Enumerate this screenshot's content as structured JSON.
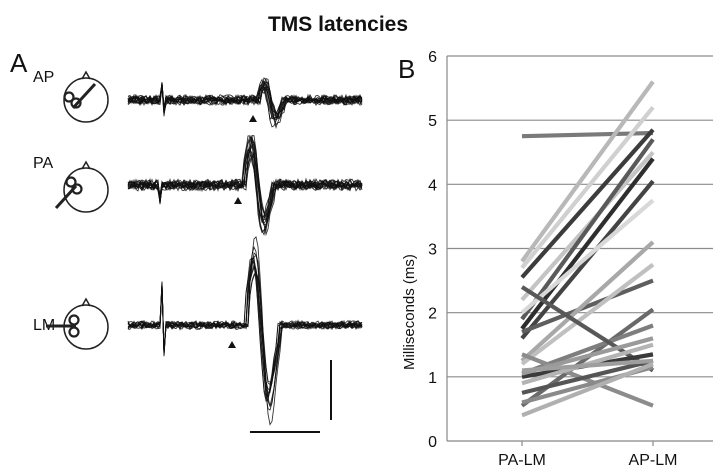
{
  "title": "TMS latencies",
  "panel_a": {
    "label": "A",
    "conditions": [
      {
        "label": "AP"
      },
      {
        "label": "PA"
      },
      {
        "label": "LM"
      }
    ]
  },
  "chart_data": {
    "type": "line",
    "panel_label": "B",
    "title": "",
    "xlabel": "",
    "ylabel": "Milliseconds (ms)",
    "categories": [
      "PA-LM",
      "AP-LM"
    ],
    "ylim": [
      0,
      6
    ],
    "yticks": [
      0,
      1,
      2,
      3,
      4,
      5,
      6
    ],
    "grid": true,
    "series": [
      {
        "values": [
          4.75,
          4.8
        ],
        "color": "#7a7a7a"
      },
      {
        "values": [
          2.8,
          5.6
        ],
        "color": "#b8b8b8"
      },
      {
        "values": [
          2.7,
          5.2
        ],
        "color": "#d0d0d0"
      },
      {
        "values": [
          2.55,
          4.85
        ],
        "color": "#3c3c3c"
      },
      {
        "values": [
          2.2,
          4.5
        ],
        "color": "#c4c4c4"
      },
      {
        "values": [
          1.9,
          4.7
        ],
        "color": "#5a5a5a"
      },
      {
        "values": [
          1.75,
          4.4
        ],
        "color": "#2e2e2e"
      },
      {
        "values": [
          1.6,
          4.05
        ],
        "color": "#444444"
      },
      {
        "values": [
          2.0,
          3.75
        ],
        "color": "#d8d8d8"
      },
      {
        "values": [
          1.7,
          2.5
        ],
        "color": "#5e5e5e"
      },
      {
        "values": [
          1.25,
          3.1
        ],
        "color": "#a8a8a8"
      },
      {
        "values": [
          1.2,
          2.75
        ],
        "color": "#c0c0c0"
      },
      {
        "values": [
          0.55,
          2.05
        ],
        "color": "#6a6a6a"
      },
      {
        "values": [
          1.05,
          1.8
        ],
        "color": "#7e7e7e"
      },
      {
        "values": [
          2.4,
          1.1
        ],
        "color": "#585858"
      },
      {
        "values": [
          1.35,
          0.55
        ],
        "color": "#8c8c8c"
      },
      {
        "values": [
          1.0,
          1.35
        ],
        "color": "#3a3a3a"
      },
      {
        "values": [
          1.05,
          1.6
        ],
        "color": "#9a9a9a"
      },
      {
        "values": [
          0.9,
          1.5
        ],
        "color": "#b4b4b4"
      },
      {
        "values": [
          0.75,
          1.25
        ],
        "color": "#555555"
      },
      {
        "values": [
          0.6,
          1.15
        ],
        "color": "#8a8a8a"
      },
      {
        "values": [
          1.1,
          1.25
        ],
        "color": "#9e9e9e"
      },
      {
        "values": [
          0.4,
          1.2
        ],
        "color": "#b0b0b0"
      }
    ]
  }
}
